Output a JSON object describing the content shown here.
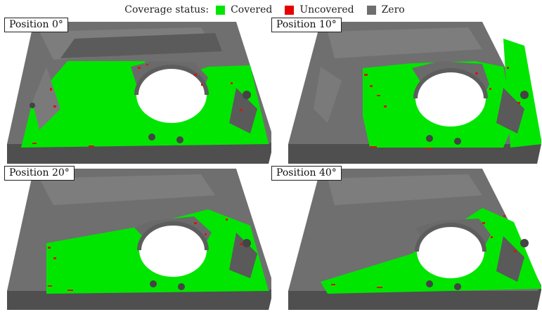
{
  "legend": {
    "title": "Coverage status:",
    "items": [
      {
        "label": "Covered",
        "color": "#00e600"
      },
      {
        "label": "Uncovered",
        "color": "#e60000"
      },
      {
        "label": "Zero",
        "color": "#6e6e6e"
      }
    ]
  },
  "panels": [
    {
      "label": "Position 0°",
      "coverage": "most of top face"
    },
    {
      "label": "Position 10°",
      "coverage": "central region"
    },
    {
      "label": "Position 20°",
      "coverage": "front region"
    },
    {
      "label": "Position 40°",
      "coverage": "front-right region"
    }
  ]
}
